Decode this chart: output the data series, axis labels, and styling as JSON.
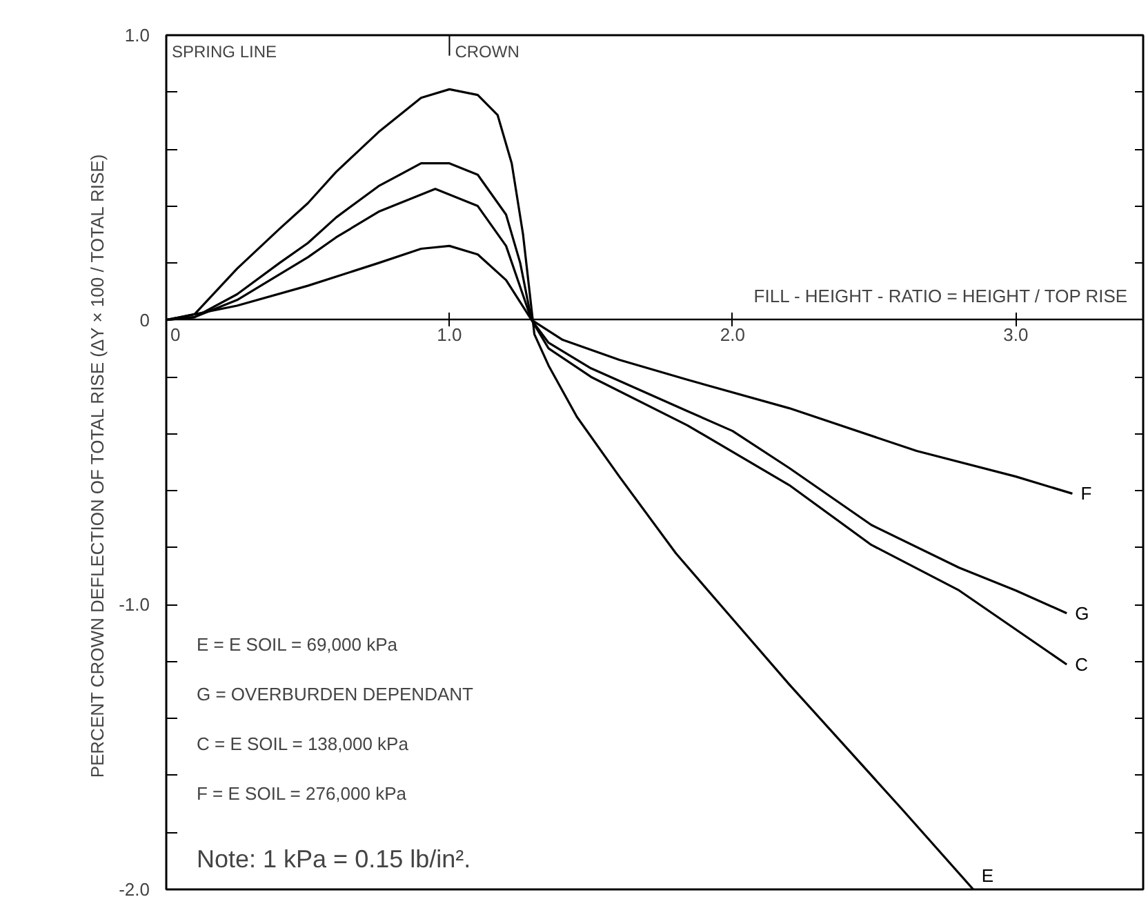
{
  "chart_data": {
    "type": "line",
    "xlabel": "FILL - HEIGHT - RATIO = HEIGHT / TOP RISE",
    "ylabel": "PERCENT CROWN DEFLECTION OF TOTAL RISE  (ΔY × 100 / TOTAL RISE)",
    "xlim": [
      0,
      3.45
    ],
    "ylim": [
      -2.0,
      1.0
    ],
    "xticks": [
      {
        "value": 0,
        "label": "0"
      },
      {
        "value": 1,
        "label": "1.0"
      },
      {
        "value": 2,
        "label": "2.0"
      },
      {
        "value": 3,
        "label": "3.0"
      }
    ],
    "yticks": [
      {
        "value": 1.0,
        "label": "1.0"
      },
      {
        "value": 0.8,
        "label": null
      },
      {
        "value": 0.6,
        "label": null
      },
      {
        "value": 0.4,
        "label": null
      },
      {
        "value": 0.2,
        "label": null
      },
      {
        "value": 0,
        "label": "0"
      },
      {
        "value": -0.2,
        "label": null
      },
      {
        "value": -0.4,
        "label": null
      },
      {
        "value": -0.6,
        "label": null
      },
      {
        "value": -0.8,
        "label": null
      },
      {
        "value": -1.0,
        "label": "-1.0"
      },
      {
        "value": -1.2,
        "label": null
      },
      {
        "value": -1.4,
        "label": null
      },
      {
        "value": -1.6,
        "label": null
      },
      {
        "value": -1.8,
        "label": null
      },
      {
        "value": -2.0,
        "label": "-2.0"
      }
    ],
    "grid": false,
    "marker": "none",
    "line_style": "solid",
    "series": [
      {
        "name": "E",
        "color": "#000000",
        "x": [
          0,
          0.1,
          0.25,
          0.4,
          0.5,
          0.6,
          0.75,
          0.9,
          1.0,
          1.1,
          1.17,
          1.22,
          1.26,
          1.3,
          1.35,
          1.45,
          1.6,
          1.8,
          2.0,
          2.2,
          2.4,
          2.6,
          2.85
        ],
        "values": [
          0,
          0.02,
          0.18,
          0.32,
          0.41,
          0.52,
          0.66,
          0.78,
          0.81,
          0.79,
          0.72,
          0.55,
          0.3,
          -0.05,
          -0.16,
          -0.34,
          -0.55,
          -0.82,
          -1.05,
          -1.28,
          -1.5,
          -1.72,
          -2.0
        ]
      },
      {
        "name": "G",
        "color": "#000000",
        "x": [
          0,
          0.1,
          0.25,
          0.4,
          0.5,
          0.6,
          0.75,
          0.9,
          1.0,
          1.1,
          1.2,
          1.25,
          1.29,
          1.35,
          1.5,
          1.84,
          2.0,
          2.2,
          2.49,
          2.8,
          3.0,
          3.18
        ],
        "values": [
          0,
          0.01,
          0.09,
          0.2,
          0.27,
          0.36,
          0.47,
          0.55,
          0.55,
          0.51,
          0.37,
          0.2,
          0.0,
          -0.08,
          -0.17,
          -0.32,
          -0.39,
          -0.52,
          -0.72,
          -0.87,
          -0.95,
          -1.03
        ]
      },
      {
        "name": "C",
        "color": "#000000",
        "x": [
          0,
          0.1,
          0.25,
          0.4,
          0.5,
          0.6,
          0.75,
          0.95,
          1.1,
          1.2,
          1.29,
          1.35,
          1.5,
          1.84,
          2.2,
          2.49,
          2.8,
          3.18
        ],
        "values": [
          0,
          0.01,
          0.07,
          0.16,
          0.22,
          0.29,
          0.38,
          0.46,
          0.4,
          0.26,
          0.0,
          -0.1,
          -0.2,
          -0.37,
          -0.58,
          -0.79,
          -0.95,
          -1.21
        ]
      },
      {
        "name": "F",
        "color": "#000000",
        "x": [
          0,
          0.25,
          0.5,
          0.75,
          0.9,
          1.0,
          1.1,
          1.2,
          1.29,
          1.4,
          1.6,
          1.84,
          2.2,
          2.65,
          3.0,
          3.2
        ],
        "values": [
          0,
          0.05,
          0.12,
          0.2,
          0.25,
          0.26,
          0.23,
          0.14,
          0.0,
          -0.07,
          -0.14,
          -0.21,
          -0.31,
          -0.46,
          -0.55,
          -0.61
        ]
      }
    ],
    "annotations": [
      "SPRING LINE",
      "CROWN",
      "E = E SOIL = 69,000 kPa",
      "G = OVERBURDEN DEPENDANT",
      "C = E SOIL = 138,000 kPa",
      "F = E SOIL = 276,000 kPa",
      "Note: 1 kPa = 0.15 lb/in²."
    ]
  }
}
